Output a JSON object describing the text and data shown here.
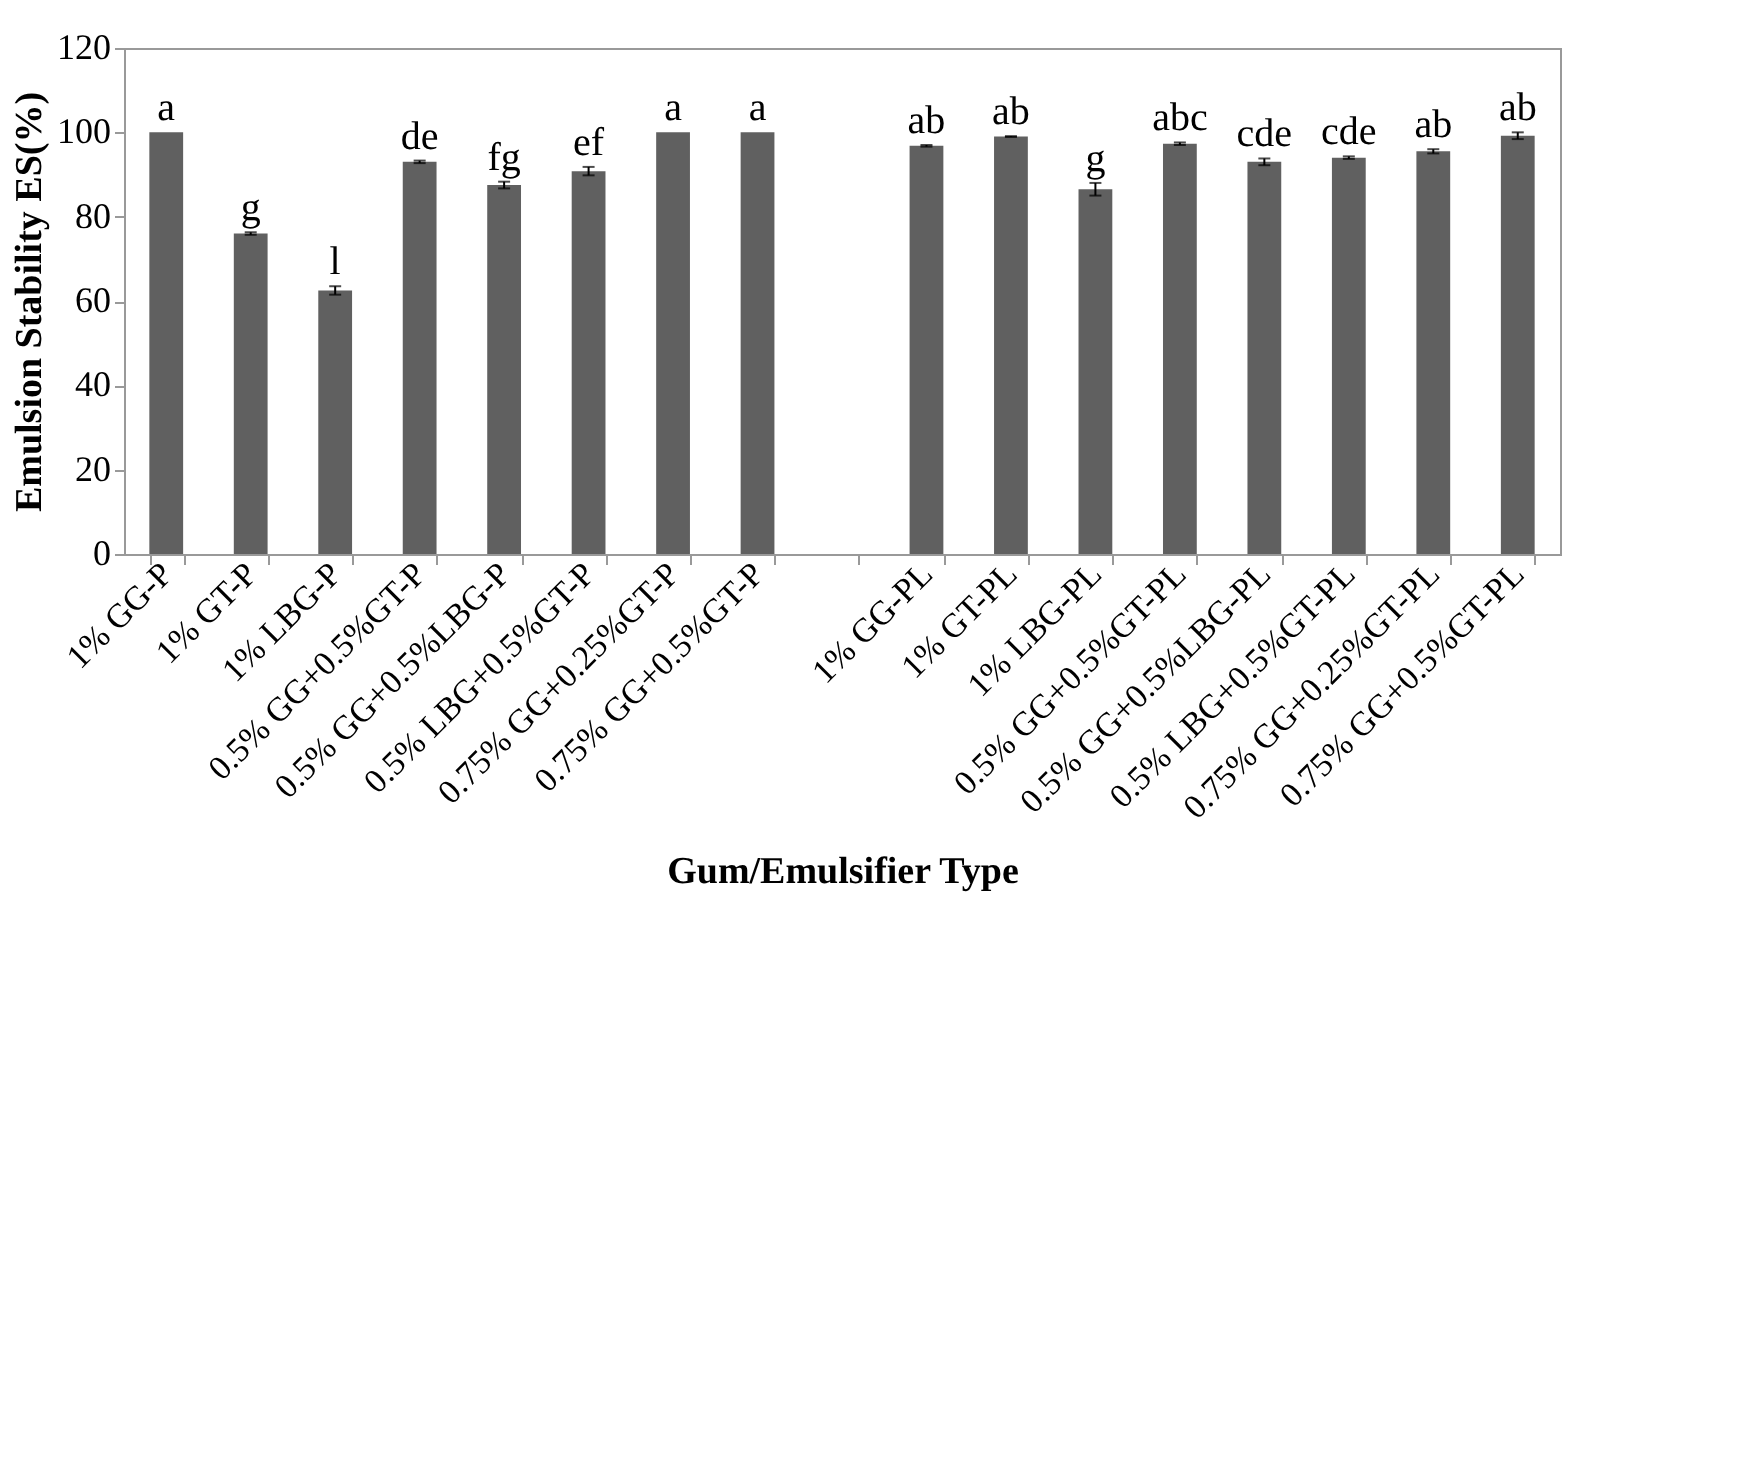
{
  "chart_data": {
    "type": "bar",
    "xlabel": "Gum/Emulsifier Type",
    "ylabel": "Emulsion Stability ES(%)",
    "categories": [
      "1% GG-P",
      "1% GT-P",
      "1% LBG-P",
      "0.5% GG+0.5%GT-P",
      "0.5% GG+0.5%LBG-P",
      "0.5% LBG+0.5%GT-P",
      "0.75% GG+0.25%GT-P",
      "0.75% GG+0.5%GT-P",
      null,
      "1% GG-PL",
      "1% GT-PL",
      "1% LBG-PL",
      "0.5% GG+0.5%GT-PL",
      "0.5% GG+0.5%LBG-PL",
      "0.5% LBG+0.5%GT-PL",
      "0.75% GG+0.25%GT-PL",
      "0.75% GG+0.5%GT-PL"
    ],
    "values": [
      100,
      76,
      62.5,
      93,
      87.5,
      90.8,
      100,
      100,
      null,
      96.8,
      99,
      86.5,
      97.3,
      93,
      94,
      95.5,
      99.2
    ],
    "errors": [
      null,
      0.3,
      1,
      0.3,
      0.8,
      1,
      null,
      null,
      null,
      0.2,
      0.1,
      1.5,
      0.3,
      0.8,
      0.3,
      0.5,
      0.8
    ],
    "value_labels": [
      "a",
      "g",
      "l",
      "de",
      "fg",
      "ef",
      "a",
      "a",
      null,
      "ab",
      "ab",
      "g",
      "abc",
      "cde",
      "cde",
      "ab",
      "ab"
    ],
    "color": "#606060",
    "ylim": [
      0,
      120
    ],
    "yticks": [
      0,
      20,
      40,
      60,
      80,
      100,
      120
    ],
    "grid": false
  }
}
